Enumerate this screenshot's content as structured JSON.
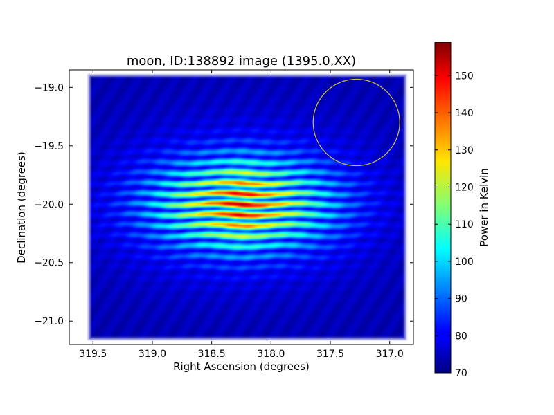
{
  "chart_data": {
    "type": "heatmap",
    "title": "moon, ID:138892 image (1395.0,XX)",
    "xlabel": "Right Ascension (degrees)",
    "ylabel": "Declination (degrees)",
    "x_direction": "decreasing",
    "xlim": [
      319.7,
      316.8
    ],
    "ylim": [
      -21.2,
      -18.85
    ],
    "xticks": [
      319.5,
      319.0,
      318.5,
      318.0,
      317.5,
      317.0
    ],
    "xtick_labels": [
      "319.5",
      "319.0",
      "318.5",
      "318.0",
      "317.5",
      "317.0"
    ],
    "yticks": [
      -19.0,
      -19.5,
      -20.0,
      -20.5,
      -21.0
    ],
    "ytick_labels": [
      "−19.0",
      "−19.5",
      "−20.0",
      "−20.5",
      "−21.0"
    ],
    "grid": false,
    "colormap": "jet",
    "colorbar": {
      "label": "Power in Kelvin",
      "range": [
        70,
        159
      ],
      "ticks": [
        70,
        80,
        90,
        100,
        110,
        120,
        130,
        140,
        150
      ],
      "tick_labels": [
        "70",
        "80",
        "90",
        "100",
        "110",
        "120",
        "130",
        "140",
        "150"
      ]
    },
    "background_level": 74,
    "map_extent": {
      "ra": [
        319.55,
        316.85
      ],
      "dec": [
        -21.17,
        -18.88
      ]
    },
    "peak": {
      "ra": 318.25,
      "dec": -20.0,
      "value": 155
    },
    "emission_spread_deg": {
      "ra": 0.55,
      "dec": 0.28
    },
    "fringe_period_deg": 0.09,
    "circle": {
      "center_ra": 317.28,
      "center_dec": -19.3,
      "radius_deg": 0.37,
      "color": "#d4c23a"
    }
  }
}
